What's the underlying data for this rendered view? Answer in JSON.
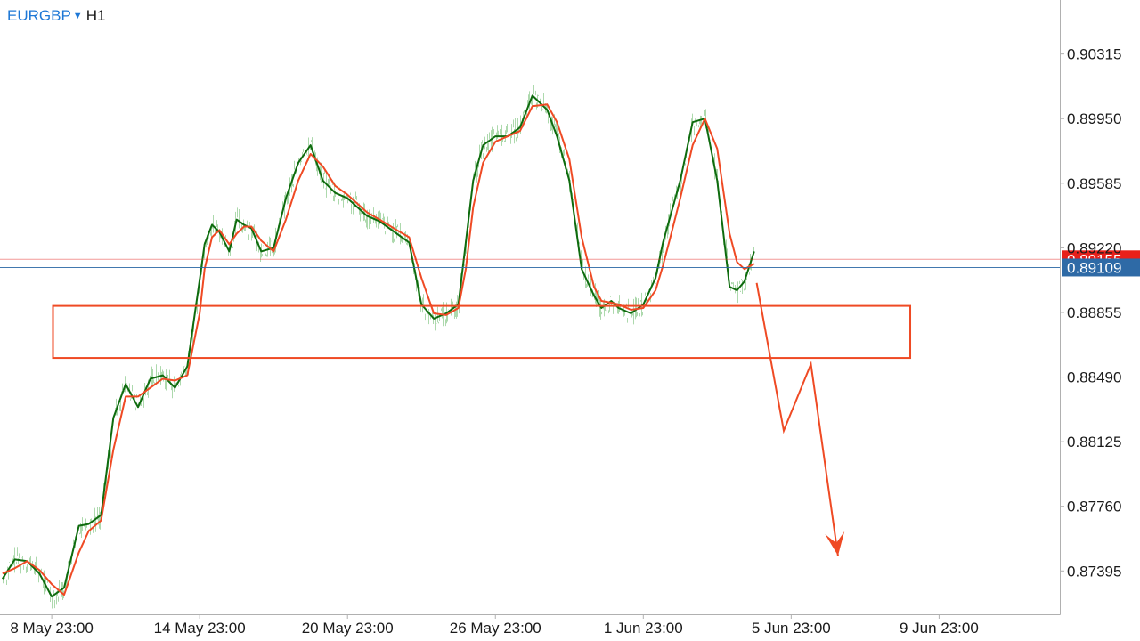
{
  "header": {
    "symbol": "EURGBP",
    "timeframe": "H1"
  },
  "colors": {
    "ma_fast": "#0e6b0e",
    "ma_slow": "#ef4a24",
    "candles": "#9fd39f",
    "annotation": "#ef4a24",
    "bid_tag": "#e8201a",
    "last_tag": "#2e6aa6",
    "axis": "#b0b0b0"
  },
  "chart_data": {
    "type": "line",
    "title": "",
    "xlabel": "",
    "ylabel": "",
    "ylim": [
      0.8715,
      0.9062
    ],
    "y_ticks": [
      0.90315,
      0.8995,
      0.89585,
      0.8922,
      0.88855,
      0.8849,
      0.88125,
      0.8776,
      0.87395
    ],
    "y_tick_labels": [
      "0.90315",
      "0.89950",
      "0.89585",
      "0.89220",
      "0.88855",
      "0.88490",
      "0.88125",
      "0.87760",
      "0.87395"
    ],
    "x_tick_labels": [
      "8 May 23:00",
      "14 May 23:00",
      "20 May 23:00",
      "26 May 23:00",
      "1 Jun 23:00",
      "5 Jun 23:00",
      "9 Jun 23:00"
    ],
    "x_ticks": [
      6.5,
      12.5,
      18.5,
      24.5,
      30.5,
      36.5,
      42.5
    ],
    "x_range": [
      4.4,
      47.4
    ],
    "price_tags": [
      {
        "label": "0.89155",
        "value": 0.89155,
        "type": "bid"
      },
      {
        "label": "0.89109",
        "value": 0.89109,
        "type": "last"
      }
    ],
    "series": [
      {
        "name": "",
        "color": "#0e6b0e",
        "x": [
          4.5,
          5.0,
          5.5,
          6.0,
          6.5,
          7.0,
          7.6,
          8.0,
          8.5,
          9.0,
          9.5,
          10.0,
          10.5,
          11.0,
          11.5,
          12.0,
          12.5,
          12.7,
          13.0,
          13.3,
          13.7,
          14.0,
          14.3,
          14.6,
          15.0,
          15.5,
          16.0,
          16.5,
          17.0,
          17.5,
          18.0,
          18.5,
          18.9,
          19.3,
          19.8,
          20.5,
          21.0,
          21.5,
          22.0,
          22.5,
          23.0,
          23.3,
          23.6,
          24.0,
          24.5,
          25.0,
          25.5,
          26.0,
          26.6,
          27.0,
          27.5,
          28.0,
          28.5,
          28.8,
          29.2,
          29.5,
          30.0,
          30.5,
          31.0,
          31.3,
          31.6,
          32.0,
          32.5,
          33.0,
          33.5,
          34.0,
          34.3,
          34.6,
          35.0
        ],
        "values": [
          0.8735,
          0.8746,
          0.8745,
          0.8738,
          0.8725,
          0.873,
          0.8765,
          0.8766,
          0.8771,
          0.8826,
          0.8845,
          0.8832,
          0.8848,
          0.885,
          0.8843,
          0.8855,
          0.8904,
          0.8924,
          0.8935,
          0.8931,
          0.892,
          0.8938,
          0.8935,
          0.8933,
          0.892,
          0.8922,
          0.895,
          0.897,
          0.898,
          0.896,
          0.8953,
          0.895,
          0.8945,
          0.894,
          0.8937,
          0.893,
          0.8925,
          0.889,
          0.8882,
          0.8885,
          0.889,
          0.8925,
          0.896,
          0.898,
          0.8985,
          0.8985,
          0.899,
          0.9008,
          0.9,
          0.8985,
          0.896,
          0.891,
          0.8895,
          0.8888,
          0.8892,
          0.8888,
          0.8885,
          0.889,
          0.8905,
          0.8925,
          0.894,
          0.896,
          0.8993,
          0.8995,
          0.896,
          0.89,
          0.8898,
          0.8903,
          0.892
        ]
      },
      {
        "name": "",
        "color": "#ef4a24",
        "x": [
          4.5,
          5.0,
          5.5,
          6.0,
          6.5,
          7.0,
          7.6,
          8.0,
          8.5,
          9.0,
          9.5,
          10.0,
          10.5,
          11.0,
          11.5,
          12.0,
          12.5,
          12.7,
          13.0,
          13.3,
          13.7,
          14.0,
          14.3,
          14.6,
          15.0,
          15.5,
          16.0,
          16.5,
          17.0,
          17.5,
          18.0,
          18.5,
          18.9,
          19.3,
          19.8,
          20.5,
          21.0,
          21.5,
          22.0,
          22.5,
          23.0,
          23.3,
          23.6,
          24.0,
          24.5,
          25.0,
          25.5,
          26.0,
          26.6,
          27.0,
          27.5,
          28.0,
          28.5,
          28.8,
          29.2,
          29.5,
          30.0,
          30.5,
          31.0,
          31.3,
          31.6,
          32.0,
          32.5,
          33.0,
          33.5,
          34.0,
          34.3,
          34.6,
          35.0
        ],
        "values": [
          0.8738,
          0.8741,
          0.8745,
          0.874,
          0.8732,
          0.8726,
          0.875,
          0.8762,
          0.8768,
          0.8808,
          0.8838,
          0.8838,
          0.8843,
          0.8848,
          0.8847,
          0.885,
          0.8885,
          0.891,
          0.8928,
          0.8932,
          0.8924,
          0.893,
          0.8934,
          0.8934,
          0.8926,
          0.892,
          0.8938,
          0.896,
          0.8975,
          0.8968,
          0.8957,
          0.8952,
          0.8947,
          0.8942,
          0.8938,
          0.8932,
          0.8928,
          0.8905,
          0.8885,
          0.8884,
          0.8888,
          0.891,
          0.8945,
          0.897,
          0.8982,
          0.8985,
          0.8988,
          0.9002,
          0.9003,
          0.8993,
          0.8972,
          0.8928,
          0.89,
          0.8892,
          0.8891,
          0.889,
          0.8887,
          0.8888,
          0.8898,
          0.8912,
          0.8928,
          0.895,
          0.898,
          0.8995,
          0.8978,
          0.893,
          0.8914,
          0.891,
          0.8913
        ]
      }
    ],
    "annotations": {
      "zone": {
        "x0": 6.55,
        "x1": 41.33,
        "y_top": 0.88892,
        "y_bottom": 0.88598
      },
      "projection": {
        "x": [
          35.1,
          36.2,
          37.3,
          38.4
        ],
        "values": [
          0.89022,
          0.88187,
          0.88563,
          0.87481
        ]
      }
    }
  }
}
